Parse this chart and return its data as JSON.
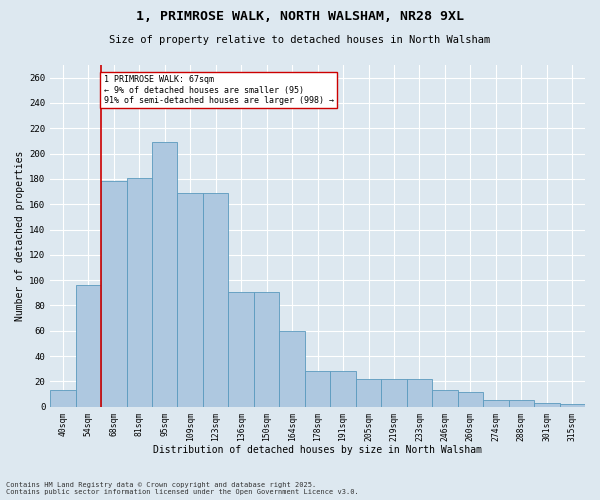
{
  "title_line1": "1, PRIMROSE WALK, NORTH WALSHAM, NR28 9XL",
  "title_line2": "Size of property relative to detached houses in North Walsham",
  "xlabel": "Distribution of detached houses by size in North Walsham",
  "ylabel": "Number of detached properties",
  "categories": [
    "40sqm",
    "54sqm",
    "68sqm",
    "81sqm",
    "95sqm",
    "109sqm",
    "123sqm",
    "136sqm",
    "150sqm",
    "164sqm",
    "178sqm",
    "191sqm",
    "205sqm",
    "219sqm",
    "233sqm",
    "246sqm",
    "260sqm",
    "274sqm",
    "288sqm",
    "301sqm",
    "315sqm"
  ],
  "values": [
    13,
    96,
    178,
    181,
    209,
    169,
    169,
    91,
    91,
    60,
    28,
    28,
    22,
    22,
    22,
    13,
    12,
    5,
    5,
    3,
    2
  ],
  "bar_color": "#aec8e0",
  "bar_edge_color": "#5a9abe",
  "annotation_text_line1": "1 PRIMROSE WALK: 67sqm",
  "annotation_text_line2": "← 9% of detached houses are smaller (95)",
  "annotation_text_line3": "91% of semi-detached houses are larger (998) →",
  "vline_color": "#cc0000",
  "vline_x_index": 1.5,
  "ylim": [
    0,
    270
  ],
  "yticks": [
    0,
    20,
    40,
    60,
    80,
    100,
    120,
    140,
    160,
    180,
    200,
    220,
    240,
    260
  ],
  "background_color": "#dde8f0",
  "grid_color": "#ffffff",
  "footer_line1": "Contains HM Land Registry data © Crown copyright and database right 2025.",
  "footer_line2": "Contains public sector information licensed under the Open Government Licence v3.0."
}
